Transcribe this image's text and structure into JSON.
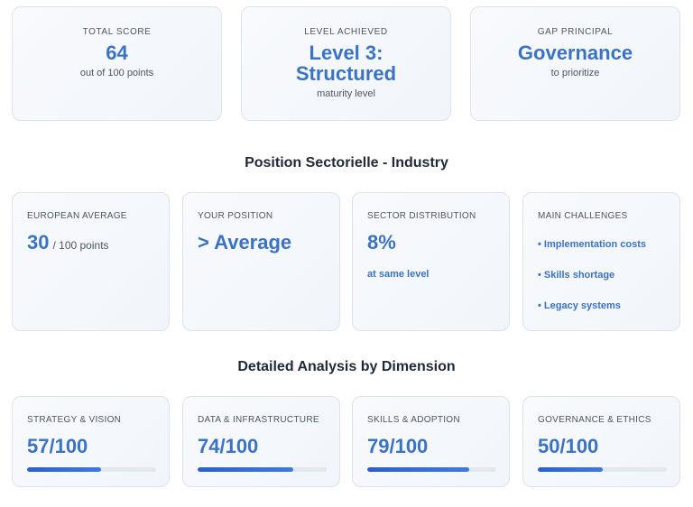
{
  "summary": [
    {
      "label": "TOTAL SCORE",
      "value": "64",
      "sub": "out of 100 points"
    },
    {
      "label": "LEVEL ACHIEVED",
      "value": "Level 3: Structured",
      "sub": "maturity level"
    },
    {
      "label": "GAP PRINCIPAL",
      "value": "Governance",
      "sub": "to prioritize"
    }
  ],
  "sector": {
    "title": "Position Sectorielle - Industry",
    "european_average": {
      "label": "EUROPEAN AVERAGE",
      "value": "30",
      "suffix": "/ 100 points"
    },
    "your_position": {
      "label": "YOUR POSITION",
      "value": "> Average"
    },
    "distribution": {
      "label": "SECTOR DISTRIBUTION",
      "value": "8%",
      "note": "at same level"
    },
    "challenges": {
      "label": "MAIN CHALLENGES",
      "items": [
        "• Implementation costs",
        "• Skills shortage",
        "• Legacy systems"
      ]
    }
  },
  "dimensions": {
    "title": "Detailed Analysis by Dimension",
    "items": [
      {
        "label": "STRATEGY & VISION",
        "value": "57/100",
        "progress": 57
      },
      {
        "label": "DATA & INFRASTRUCTURE",
        "value": "74/100",
        "progress": 74
      },
      {
        "label": "SKILLS & ADOPTION",
        "value": "79/100",
        "progress": 79
      },
      {
        "label": "GOVERNANCE & ETHICS",
        "value": "50/100",
        "progress": 50
      }
    ]
  },
  "colors": {
    "accent": "#3b73c4",
    "bar": "#2b5fcf",
    "track": "#e2e8f0"
  }
}
